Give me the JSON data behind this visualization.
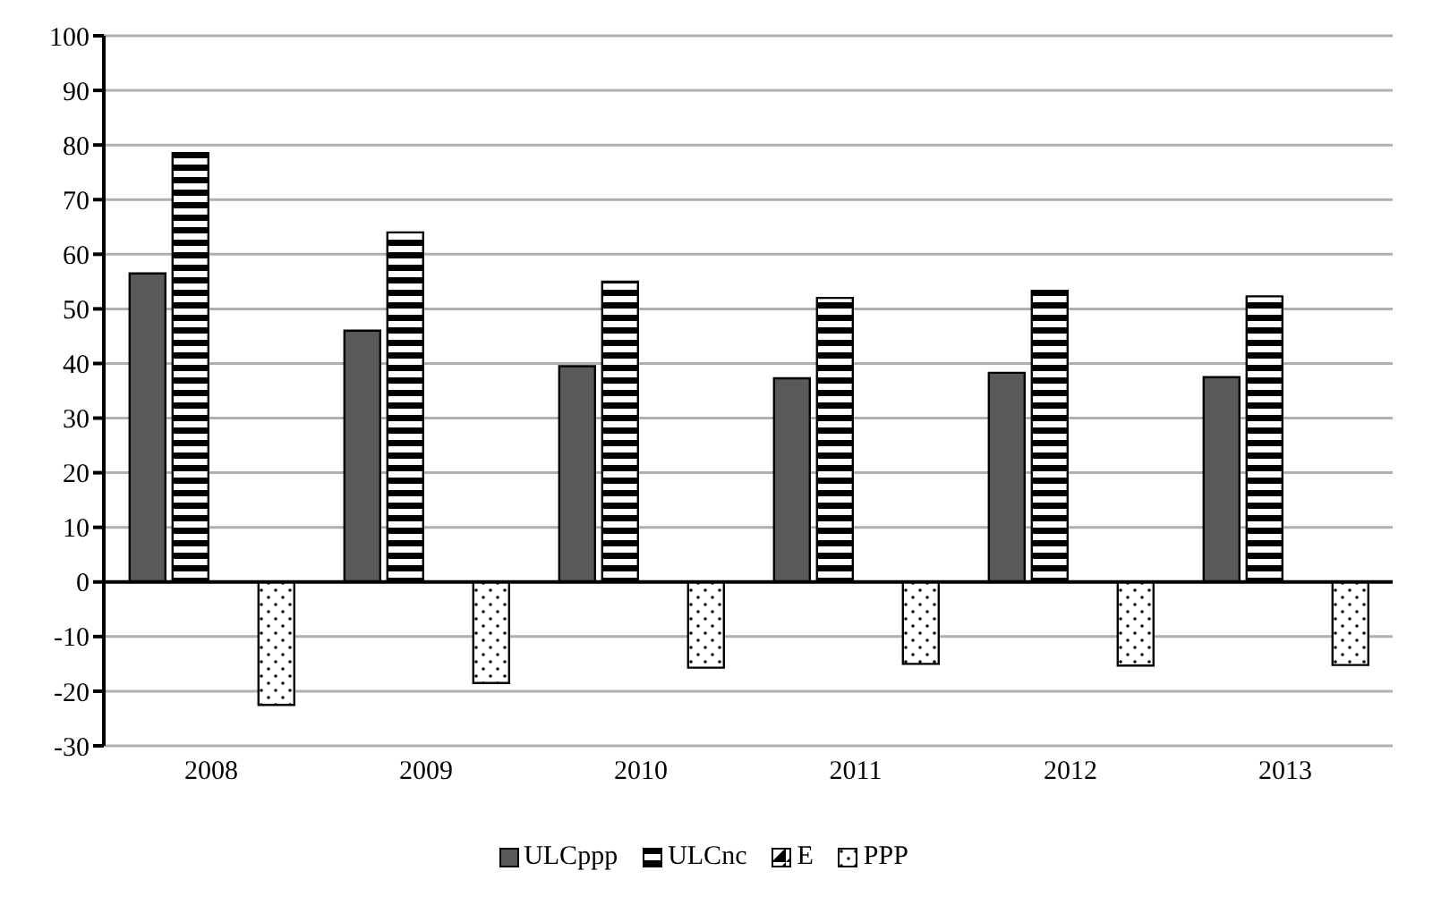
{
  "chart_data": {
    "type": "bar",
    "categories": [
      "2008",
      "2009",
      "2010",
      "2011",
      "2012",
      "2013"
    ],
    "series": [
      {
        "name": "ULCppp",
        "color": "#595959",
        "values": [
          56.5,
          46,
          39.5,
          37.3,
          38.3,
          37.5
        ]
      },
      {
        "name": "ULCnc",
        "color": "#000000",
        "values": [
          78.5,
          64,
          55,
          52,
          53.3,
          52.3
        ]
      },
      {
        "name": "E",
        "color": "#000000",
        "values": [
          0,
          0,
          0,
          0,
          0,
          0
        ]
      },
      {
        "name": "PPP",
        "color": "#000000",
        "values": [
          -22.5,
          -18.5,
          -15.7,
          -15,
          -15.3,
          -15.2
        ]
      }
    ],
    "ylim": [
      -30,
      100
    ],
    "yticks": [
      -30,
      -20,
      -10,
      0,
      10,
      20,
      30,
      40,
      50,
      60,
      70,
      80,
      90,
      100
    ],
    "grid": "y",
    "legend": "bottom"
  }
}
